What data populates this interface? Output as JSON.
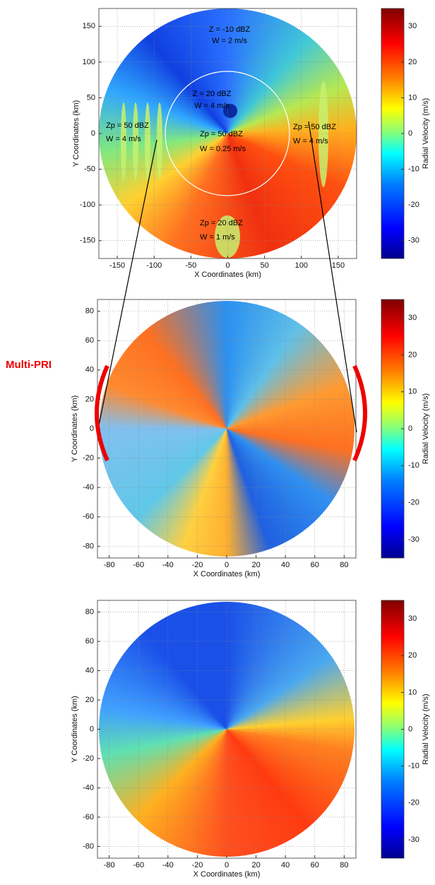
{
  "annotation": "Multi-PRI",
  "chart_data": [
    {
      "type": "polar_field",
      "xlabel": "X Coordinates (km)",
      "ylabel": "Y Coordinates (km)",
      "xlim": [
        -175,
        175
      ],
      "ylim": [
        -175,
        175
      ],
      "xticks": [
        -150,
        -100,
        -50,
        0,
        50,
        100,
        150
      ],
      "yticks": [
        -150,
        -100,
        -50,
        0,
        50,
        100,
        150
      ],
      "grid": true,
      "colorbar": {
        "label": "Radial Velocity (m/s)",
        "lim": [
          -35,
          35
        ],
        "ticks": [
          -30,
          -20,
          -10,
          0,
          10,
          20,
          30
        ]
      },
      "annotations": [
        "Z = -10 dBZ",
        "W = 2 m/s",
        "Z = 20 dBZ",
        "W = 4 m/s",
        "Zp = 50 dBZ",
        "W = 4 m/s",
        "Zp = 50 dBZ",
        "W = 0.25 m/s",
        "Zp = 50 dBZ",
        "W = 4 m/s",
        "Zp = 20 dBZ",
        "W = 1 m/s"
      ]
    },
    {
      "type": "polar_field",
      "xlabel": "X Coordinates (km)",
      "ylabel": "Y Coordinates (km)",
      "xlim": [
        -88,
        88
      ],
      "ylim": [
        -88,
        88
      ],
      "xticks": [
        -80,
        -60,
        -40,
        -20,
        0,
        20,
        40,
        60,
        80
      ],
      "yticks": [
        -80,
        -60,
        -40,
        -20,
        0,
        20,
        40,
        60,
        80
      ],
      "grid": true,
      "colorbar": {
        "label": "Radial Velocity (m/s)",
        "lim": [
          -35,
          35
        ],
        "ticks": [
          -30,
          -20,
          -10,
          0,
          10,
          20,
          30
        ]
      }
    },
    {
      "type": "polar_field",
      "xlabel": "X Coordinates (km)",
      "ylabel": "Y Coordinates (km)",
      "xlim": [
        -88,
        88
      ],
      "ylim": [
        -88,
        88
      ],
      "xticks": [
        -80,
        -60,
        -40,
        -20,
        0,
        20,
        40,
        60,
        80
      ],
      "yticks": [
        -80,
        -60,
        -40,
        -20,
        0,
        20,
        40,
        60,
        80
      ],
      "grid": true,
      "colorbar": {
        "label": "Radial Velocity (m/s)",
        "lim": [
          -35,
          35
        ],
        "ticks": [
          -30,
          -20,
          -10,
          0,
          10,
          20,
          30
        ]
      }
    }
  ]
}
